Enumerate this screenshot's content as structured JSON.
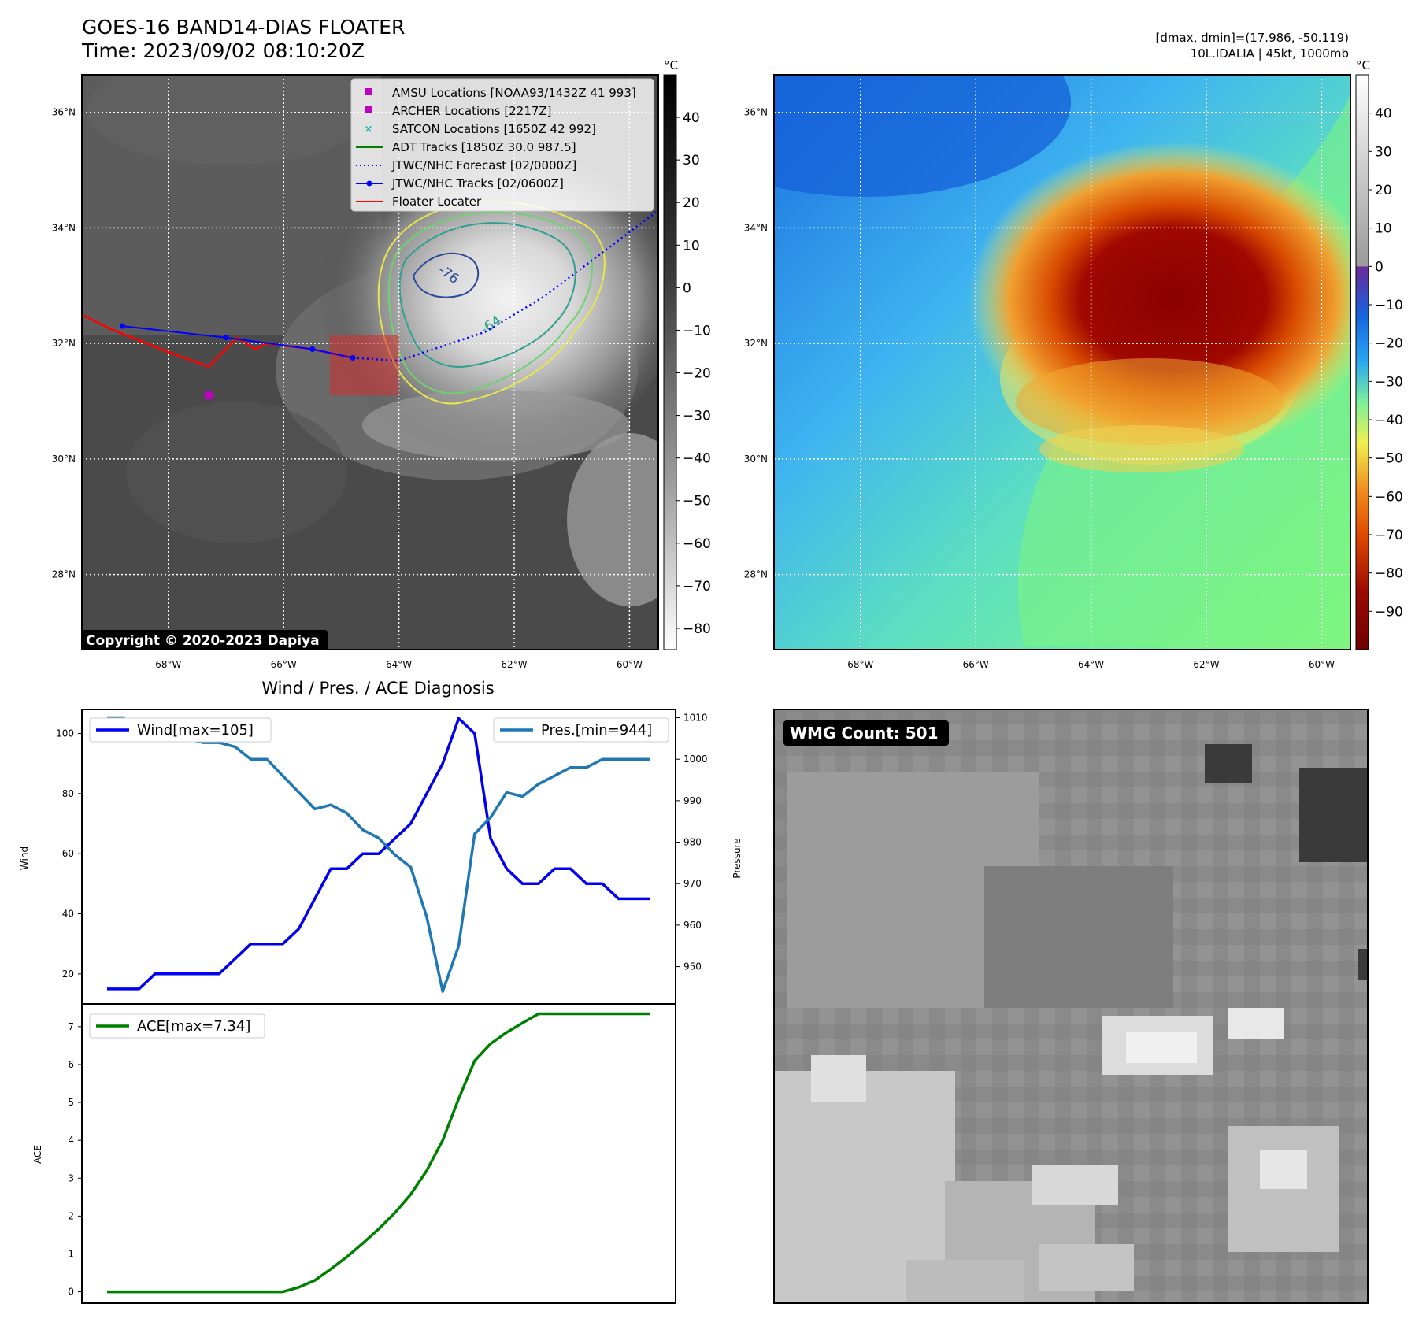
{
  "header": {
    "title_line1": "GOES-16 BAND14-DIAS FLOATER",
    "title_line2": "Time: 2023/09/02 08:10:20Z",
    "stats_line1": "[dmax, dmin]=(17.986, -50.119)",
    "stats_line2": "10L.IDALIA | 45kt, 1000mb"
  },
  "map": {
    "lat_labels": [
      "36°N",
      "34°N",
      "32°N",
      "30°N",
      "28°N"
    ],
    "lon_labels": [
      "68°W",
      "66°W",
      "64°W",
      "62°W",
      "60°W"
    ],
    "lat_values": [
      36,
      34,
      32,
      30,
      28
    ],
    "lon_values": [
      -68,
      -66,
      -64,
      -62,
      -60
    ],
    "lat_range": [
      26.7,
      36.65
    ],
    "lon_range": [
      -69.5,
      -59.5
    ],
    "copyright": "Copyright © 2020-2023 Dapiya",
    "contour_labels": [
      "-76",
      "-64"
    ],
    "legend": [
      {
        "label": "AMSU Locations [NOAA93/1432Z 41 993]",
        "marker": "square",
        "color": "#c000c0"
      },
      {
        "label": "ARCHER Locations [2217Z]",
        "marker": "square",
        "color": "#c000c0"
      },
      {
        "label": "SATCON Locations [1650Z 42 992]",
        "marker": "x",
        "color": "#20b2aa"
      },
      {
        "label": "ADT Tracks [1850Z 30.0 987.5]",
        "marker": "line",
        "color": "#008000"
      },
      {
        "label": "JTWC/NHC Forecast [02/0000Z]",
        "marker": "dotted",
        "color": "#0000ff"
      },
      {
        "label": "JTWC/NHC Tracks [02/0600Z]",
        "marker": "line-dot",
        "color": "#0000ff"
      },
      {
        "label": "Floater Locater",
        "marker": "line",
        "color": "#ff0000"
      }
    ],
    "archer_point": {
      "lon": -67.3,
      "lat": 31.1
    },
    "floater_box": {
      "lon_min": -65.2,
      "lon_max": -64.0,
      "lat_min": 31.1,
      "lat_max": 32.15
    },
    "best_track": [
      [
        -68.8,
        32.3
      ],
      [
        -67.0,
        32.1
      ],
      [
        -65.5,
        31.9
      ],
      [
        -64.8,
        31.75
      ]
    ],
    "forecast_track": [
      [
        -64.8,
        31.75
      ],
      [
        -64.0,
        31.7
      ],
      [
        -62.5,
        32.2
      ],
      [
        -61.5,
        32.8
      ],
      [
        -60.3,
        33.7
      ],
      [
        -59.5,
        34.3
      ]
    ],
    "floater_track": [
      [
        -69.5,
        32.5
      ],
      [
        -69.0,
        32.25
      ],
      [
        -68.0,
        31.85
      ],
      [
        -67.3,
        31.6
      ],
      [
        -66.8,
        32.1
      ],
      [
        -66.5,
        31.9
      ],
      [
        -66.3,
        32.0
      ],
      [
        -65.5,
        31.9
      ],
      [
        -64.8,
        31.75
      ]
    ]
  },
  "colorbar_gray": {
    "unit": "°C",
    "ticks": [
      "40",
      "30",
      "20",
      "10",
      "0",
      "−10",
      "−20",
      "−30",
      "−40",
      "−50",
      "−60",
      "−70",
      "−80"
    ],
    "tick_values": [
      40,
      30,
      20,
      10,
      0,
      -10,
      -20,
      -30,
      -40,
      -50,
      -60,
      -70,
      -80
    ],
    "range": [
      -85,
      50
    ]
  },
  "colorbar_color": {
    "unit": "°C",
    "ticks": [
      "40",
      "30",
      "20",
      "10",
      "0",
      "−10",
      "−20",
      "−30",
      "−40",
      "−50",
      "−60",
      "−70",
      "−80",
      "−90"
    ],
    "tick_values": [
      40,
      30,
      20,
      10,
      0,
      -10,
      -20,
      -30,
      -40,
      -50,
      -60,
      -70,
      -80,
      -90
    ],
    "range": [
      -100,
      50
    ]
  },
  "wmg": {
    "label": "WMG Count: 501"
  },
  "chart_data": [
    {
      "type": "line",
      "title": "Wind / Pres. / ACE Diagnosis",
      "ylabel": "Wind",
      "y2label": "Pressure",
      "ylim": [
        10,
        108
      ],
      "y2lim": [
        941,
        1012
      ],
      "yticks": [
        20,
        40,
        60,
        80,
        100
      ],
      "y2ticks": [
        950,
        960,
        970,
        980,
        990,
        1000,
        1010
      ],
      "series": [
        {
          "name": "Wind[max=105]",
          "color": "#0000ee",
          "axis": "left",
          "values": [
            15,
            15,
            15,
            20,
            20,
            20,
            20,
            20,
            25,
            30,
            30,
            30,
            35,
            45,
            55,
            55,
            60,
            60,
            65,
            70,
            80,
            90,
            105,
            100,
            65,
            55,
            50,
            50,
            55,
            55,
            50,
            50,
            45,
            45,
            45
          ]
        },
        {
          "name": "Pres.[min=944]",
          "color": "#1f77b4",
          "axis": "right",
          "values": [
            1010,
            1010,
            1007,
            1006,
            1005,
            1005,
            1004,
            1004,
            1003,
            1000,
            1000,
            996,
            992,
            988,
            989,
            987,
            983,
            981,
            977,
            974,
            962,
            944,
            955,
            982,
            986,
            992,
            991,
            994,
            996,
            998,
            998,
            1000,
            1000,
            1000,
            1000
          ]
        }
      ]
    },
    {
      "type": "line",
      "ylabel": "ACE",
      "ylim": [
        -0.3,
        7.6
      ],
      "yticks": [
        0,
        1,
        2,
        3,
        4,
        5,
        6,
        7
      ],
      "series": [
        {
          "name": "ACE[max=7.34]",
          "color": "#008000",
          "values": [
            0,
            0,
            0,
            0,
            0,
            0,
            0,
            0,
            0,
            0,
            0,
            0,
            0.12,
            0.3,
            0.6,
            0.92,
            1.28,
            1.66,
            2.08,
            2.57,
            3.2,
            4.0,
            5.1,
            6.1,
            6.55,
            6.85,
            7.1,
            7.34,
            7.34,
            7.34,
            7.34,
            7.34,
            7.34,
            7.34,
            7.34
          ]
        }
      ]
    }
  ]
}
